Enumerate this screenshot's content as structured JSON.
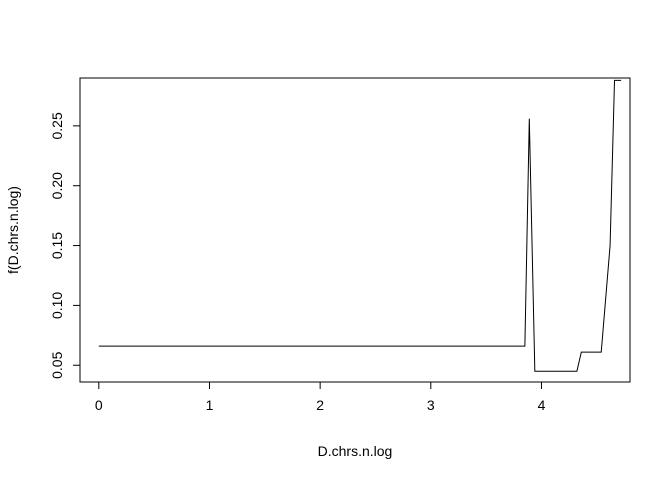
{
  "chart_data": {
    "type": "line",
    "title": "",
    "xlabel": "D.chrs.n.log",
    "ylabel": "f(D.chrs.n.log)",
    "xlim": [
      -0.17,
      4.8
    ],
    "ylim": [
      0.036,
      0.29
    ],
    "x_ticks": [
      0,
      1,
      2,
      3,
      4
    ],
    "y_ticks": [
      0.05,
      0.1,
      0.15,
      0.2,
      0.25
    ],
    "x_tick_labels": [
      "0",
      "1",
      "2",
      "3",
      "4"
    ],
    "y_tick_labels": [
      "0.05",
      "0.10",
      "0.15",
      "0.20",
      "0.25"
    ],
    "grid": false,
    "series": [
      {
        "color": "#000000",
        "x": [
          0,
          3.85,
          3.89,
          3.94,
          4.32,
          4.36,
          4.54,
          4.62,
          4.66,
          4.72
        ],
        "y": [
          0.066,
          0.066,
          0.256,
          0.045,
          0.045,
          0.061,
          0.061,
          0.15,
          0.288,
          0.288
        ]
      }
    ]
  }
}
